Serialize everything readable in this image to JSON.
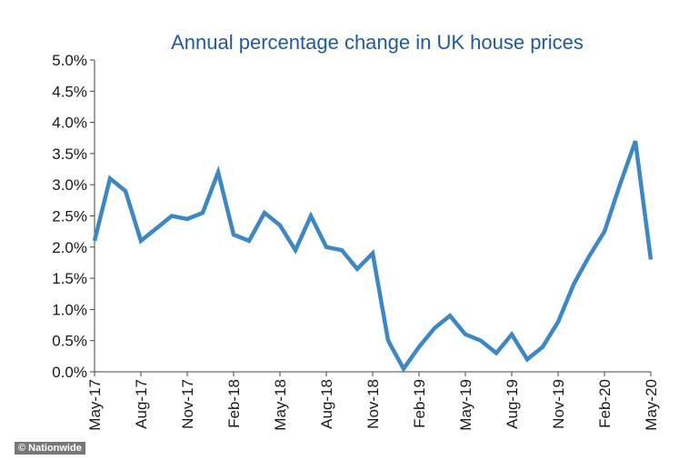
{
  "credit": "© Nationwide",
  "chart_data": {
    "type": "line",
    "title": "Annual percentage change in UK house prices",
    "xlabel": "",
    "ylabel": "",
    "ylim": [
      0,
      5
    ],
    "yticks": [
      "0.0%",
      "0.5%",
      "1.0%",
      "1.5%",
      "2.0%",
      "2.5%",
      "3.0%",
      "3.5%",
      "4.0%",
      "4.5%",
      "5.0%"
    ],
    "x_tick_labels": [
      "May-17",
      "Aug-17",
      "Nov-17",
      "Feb-18",
      "May-18",
      "Aug-18",
      "Nov-18",
      "Feb-19",
      "May-19",
      "Aug-19",
      "Nov-19",
      "Feb-20",
      "May-20"
    ],
    "x": [
      "May-17",
      "Jun-17",
      "Jul-17",
      "Aug-17",
      "Sep-17",
      "Oct-17",
      "Nov-17",
      "Dec-17",
      "Jan-18",
      "Feb-18",
      "Mar-18",
      "Apr-18",
      "May-18",
      "Jun-18",
      "Jul-18",
      "Aug-18",
      "Sep-18",
      "Oct-18",
      "Nov-18",
      "Dec-18",
      "Jan-19",
      "Feb-19",
      "Mar-19",
      "Apr-19",
      "May-19",
      "Jun-19",
      "Jul-19",
      "Aug-19",
      "Sep-19",
      "Oct-19",
      "Nov-19",
      "Dec-19",
      "Jan-20",
      "Feb-20",
      "Mar-20",
      "Apr-20",
      "May-20"
    ],
    "series": [
      {
        "color": "#3a88c8",
        "values": [
          2.1,
          3.1,
          2.9,
          2.1,
          2.3,
          2.5,
          2.45,
          2.55,
          3.2,
          2.2,
          2.1,
          2.55,
          2.35,
          1.95,
          2.5,
          2.0,
          1.95,
          1.65,
          1.9,
          0.5,
          0.05,
          0.4,
          0.7,
          0.9,
          0.6,
          0.5,
          0.3,
          0.6,
          0.2,
          0.4,
          0.8,
          1.4,
          1.85,
          2.25,
          3.0,
          3.7,
          1.8
        ]
      }
    ],
    "grid": false,
    "legend": "none"
  }
}
